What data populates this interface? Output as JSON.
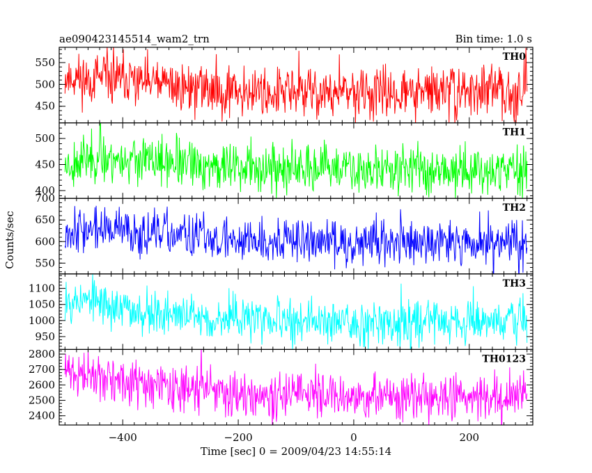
{
  "header": {
    "left_title": "ae090423145514_wam2_trn",
    "right_title": "Bin time: 1.0 s"
  },
  "axes": {
    "ylabel": "Counts/sec",
    "xlabel": "Time [sec] 0 = 2009/04/23 14:55:14"
  },
  "chart_data": {
    "type": "line",
    "x_range": [
      -510,
      310
    ],
    "x_ticks": [
      -400,
      -200,
      0,
      200
    ],
    "x_tick_labels": [
      "−400",
      "−200",
      "0",
      "200"
    ],
    "bin_time_s": 1.0,
    "grid": false,
    "panels": [
      {
        "name": "TH0",
        "color": "#ff0000",
        "ylim": [
          412,
          585
        ],
        "yticks": [
          450,
          500,
          550
        ],
        "trend": {
          "x": [
            -500,
            -400,
            -300,
            -200,
            0,
            300
          ],
          "y": [
            515,
            510,
            495,
            485,
            478,
            488
          ]
        },
        "amplitude": 38,
        "seed": 11
      },
      {
        "name": "TH1",
        "color": "#00ff00",
        "ylim": [
          385,
          530
        ],
        "yticks": [
          400,
          450,
          500
        ],
        "trend": {
          "x": [
            -500,
            -450,
            -300,
            -100,
            100,
            300
          ],
          "y": [
            450,
            465,
            450,
            440,
            442,
            440
          ]
        },
        "amplitude": 30,
        "seed": 23
      },
      {
        "name": "TH2",
        "color": "#0000ff",
        "ylim": [
          525,
          700
        ],
        "yticks": [
          550,
          600,
          650,
          700
        ],
        "trend": {
          "x": [
            -500,
            -400,
            -300,
            -200,
            0,
            300
          ],
          "y": [
            630,
            625,
            612,
            605,
            598,
            600
          ]
        },
        "amplitude": 34,
        "seed": 37
      },
      {
        "name": "TH3",
        "color": "#00ffff",
        "ylim": [
          910,
          1145
        ],
        "yticks": [
          950,
          1000,
          1050,
          1100
        ],
        "trend": {
          "x": [
            -500,
            -450,
            -400,
            -300,
            -100,
            100,
            300
          ],
          "y": [
            1070,
            1060,
            1035,
            1015,
            995,
            998,
            1000
          ]
        },
        "amplitude": 45,
        "seed": 53
      },
      {
        "name": "TH0123",
        "color": "#ff00ff",
        "ylim": [
          2340,
          2830
        ],
        "yticks": [
          2400,
          2500,
          2600,
          2700,
          2800
        ],
        "trend": {
          "x": [
            -500,
            -450,
            -400,
            -300,
            -200,
            0,
            300
          ],
          "y": [
            2680,
            2660,
            2620,
            2570,
            2545,
            2520,
            2525
          ]
        },
        "amplitude": 95,
        "seed": 71
      }
    ]
  }
}
